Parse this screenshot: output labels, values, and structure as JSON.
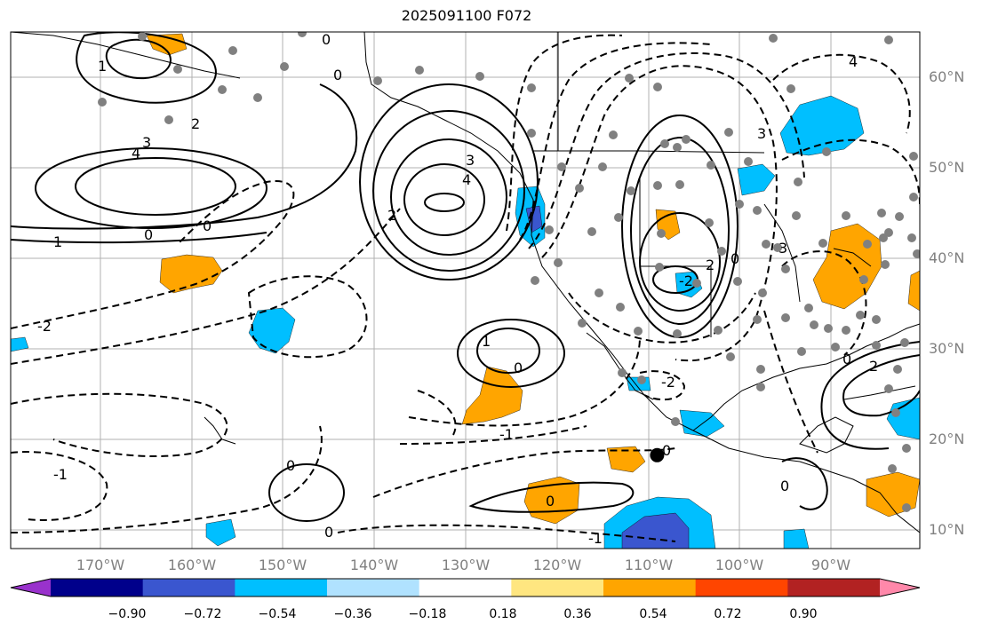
{
  "title": "2025091100 F072",
  "map": {
    "projection": "equirectangular",
    "lon_range": [
      -180,
      -80
    ],
    "lat_range": [
      7,
      64
    ],
    "gridlines": true,
    "lat_labels": [
      "60°N",
      "50°N",
      "40°N",
      "30°N",
      "20°N",
      "10°N"
    ],
    "lon_labels": [
      "170°W",
      "160°W",
      "150°W",
      "140°W",
      "130°W",
      "120°W",
      "110°W",
      "100°W",
      "90°W"
    ],
    "contour_labels": [
      "0",
      "1",
      "2",
      "3",
      "4",
      "-1",
      "-2",
      "0",
      "1",
      "2",
      "3",
      "4",
      "-1",
      "-2",
      "0",
      "2",
      "4",
      "-2",
      "1",
      "0",
      "2",
      "-1",
      "0"
    ],
    "station_marker": {
      "lon": -108.9,
      "lat": 17.3
    },
    "colors": {
      "positive_anomaly": "#ffa500",
      "negative_anomaly": "#00bfff",
      "strong_negative": "#3a56cf",
      "contour": "#000000",
      "station_dots": "#808080",
      "grid": "#b0b0b0"
    }
  },
  "colorbar": {
    "ticks": [
      "−0.90",
      "−0.72",
      "−0.54",
      "−0.36",
      "−0.18",
      "0.18",
      "0.36",
      "0.54",
      "0.72",
      "0.90"
    ],
    "colors": [
      "#9932cc",
      "#00008b",
      "#3a56cf",
      "#00bfff",
      "#b0e2ff",
      "#ffffff",
      "#ffe680",
      "#ffa500",
      "#ff4500",
      "#b22222",
      "#ff88aa"
    ]
  }
}
